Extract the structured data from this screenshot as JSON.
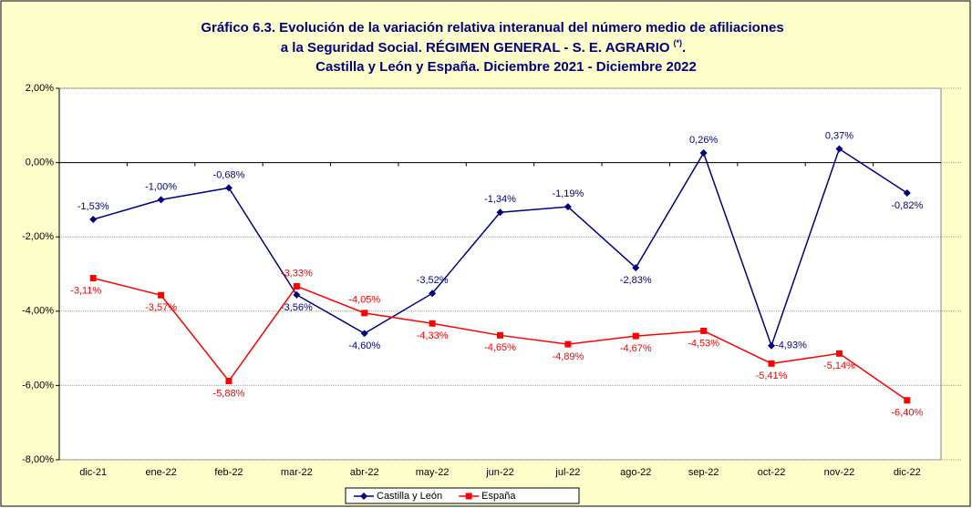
{
  "chart_data": {
    "type": "line",
    "title": {
      "line1": "Gráfico 6.3. Evolución de la variación relativa interanual del número medio de afiliaciones",
      "line2": "a la Seguridad Social. RÉGIMEN GENERAL - S. E. AGRARIO",
      "line2_note": "(*)",
      "line2_end": ".",
      "line3": "Castilla y León y España. Diciembre 2021 - Diciembre 2022"
    },
    "categories": [
      "dic-21",
      "ene-22",
      "feb-22",
      "mar-22",
      "abr-22",
      "may-22",
      "jun-22",
      "jul-22",
      "ago-22",
      "sep-22",
      "oct-22",
      "nov-22",
      "dic-22"
    ],
    "series": [
      {
        "name": "Castilla y León",
        "color": "#000080",
        "marker": "diamond",
        "values": [
          -1.53,
          -1.0,
          -0.68,
          -3.56,
          -4.6,
          -3.52,
          -1.34,
          -1.19,
          -2.83,
          0.26,
          -4.93,
          0.37,
          -0.82
        ],
        "value_labels": [
          "-1,53%",
          "-1,00%",
          "-0,68%",
          "-3,56%",
          "-4,60%",
          "-3,52%",
          "-1,34%",
          "-1,19%",
          "-2,83%",
          "0,26%",
          "-4,93%",
          "0,37%",
          "-0,82%"
        ]
      },
      {
        "name": "España",
        "color": "#ff0000",
        "marker": "square",
        "values": [
          -3.11,
          -3.57,
          -5.88,
          -3.33,
          -4.05,
          -4.33,
          -4.65,
          -4.89,
          -4.67,
          -4.53,
          -5.41,
          -5.14,
          -6.4
        ],
        "value_labels": [
          "-3,11%",
          "-3,57%",
          "-5,88%",
          "-3,33%",
          "-4,05%",
          "-4,33%",
          "-4,65%",
          "-4,89%",
          "-4,67%",
          "-4,53%",
          "-5,41%",
          "-5,14%",
          "-6,40%"
        ]
      }
    ],
    "ylim": [
      -8,
      2
    ],
    "yticks": [
      {
        "value": -8,
        "label": "-8,00%"
      },
      {
        "value": -6,
        "label": "-6,00%"
      },
      {
        "value": -4,
        "label": "-4,00%"
      },
      {
        "value": -2,
        "label": "-2,00%"
      },
      {
        "value": 0,
        "label": "0,00%"
      },
      {
        "value": 2,
        "label": "2,00%"
      }
    ],
    "grid": true,
    "legend": "bottom"
  }
}
